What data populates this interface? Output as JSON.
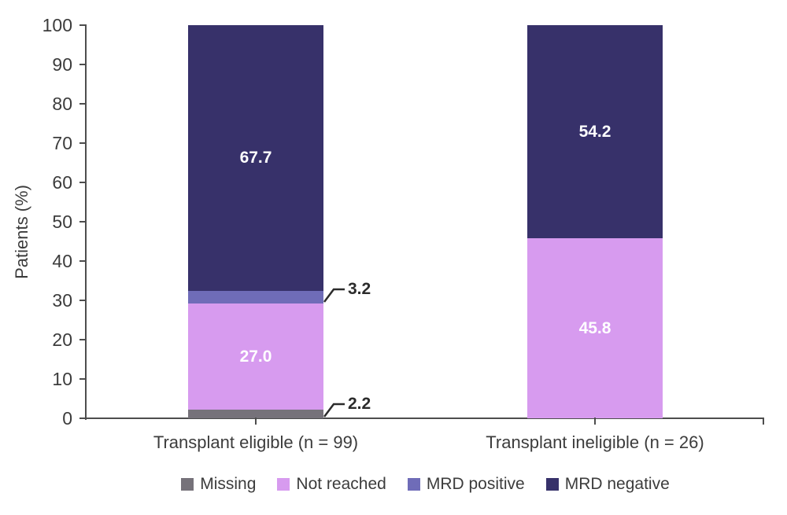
{
  "chart_data": {
    "type": "bar",
    "stacked": true,
    "title": "",
    "xlabel": "",
    "ylabel": "Patients (%)",
    "ylim": [
      0,
      100
    ],
    "yticks": [
      0,
      10,
      20,
      30,
      40,
      50,
      60,
      70,
      80,
      90,
      100
    ],
    "grid": false,
    "categories": [
      "Transplant eligible (n = 99)",
      "Transplant ineligible (n = 26)"
    ],
    "series": [
      {
        "name": "Missing",
        "color": "#76727a",
        "values": [
          2.2,
          0
        ],
        "label_style": "callout"
      },
      {
        "name": "Not reached",
        "color": "#d79bef",
        "values": [
          27.0,
          45.8
        ],
        "label_style": "inside"
      },
      {
        "name": "MRD positive",
        "color": "#6f6cb8",
        "values": [
          3.2,
          0
        ],
        "label_style": "callout"
      },
      {
        "name": "MRD negative",
        "color": "#37316a",
        "values": [
          67.7,
          54.2
        ],
        "label_style": "inside"
      }
    ],
    "legend": {
      "position": "bottom",
      "items": [
        "Missing",
        "Not reached",
        "MRD positive",
        "MRD negative"
      ]
    },
    "colors": {
      "axis": "#4d4d4d",
      "text": "#3c3c3c",
      "value_label_inside": "#ffffff",
      "value_label_callout": "#2b2b2b"
    }
  }
}
